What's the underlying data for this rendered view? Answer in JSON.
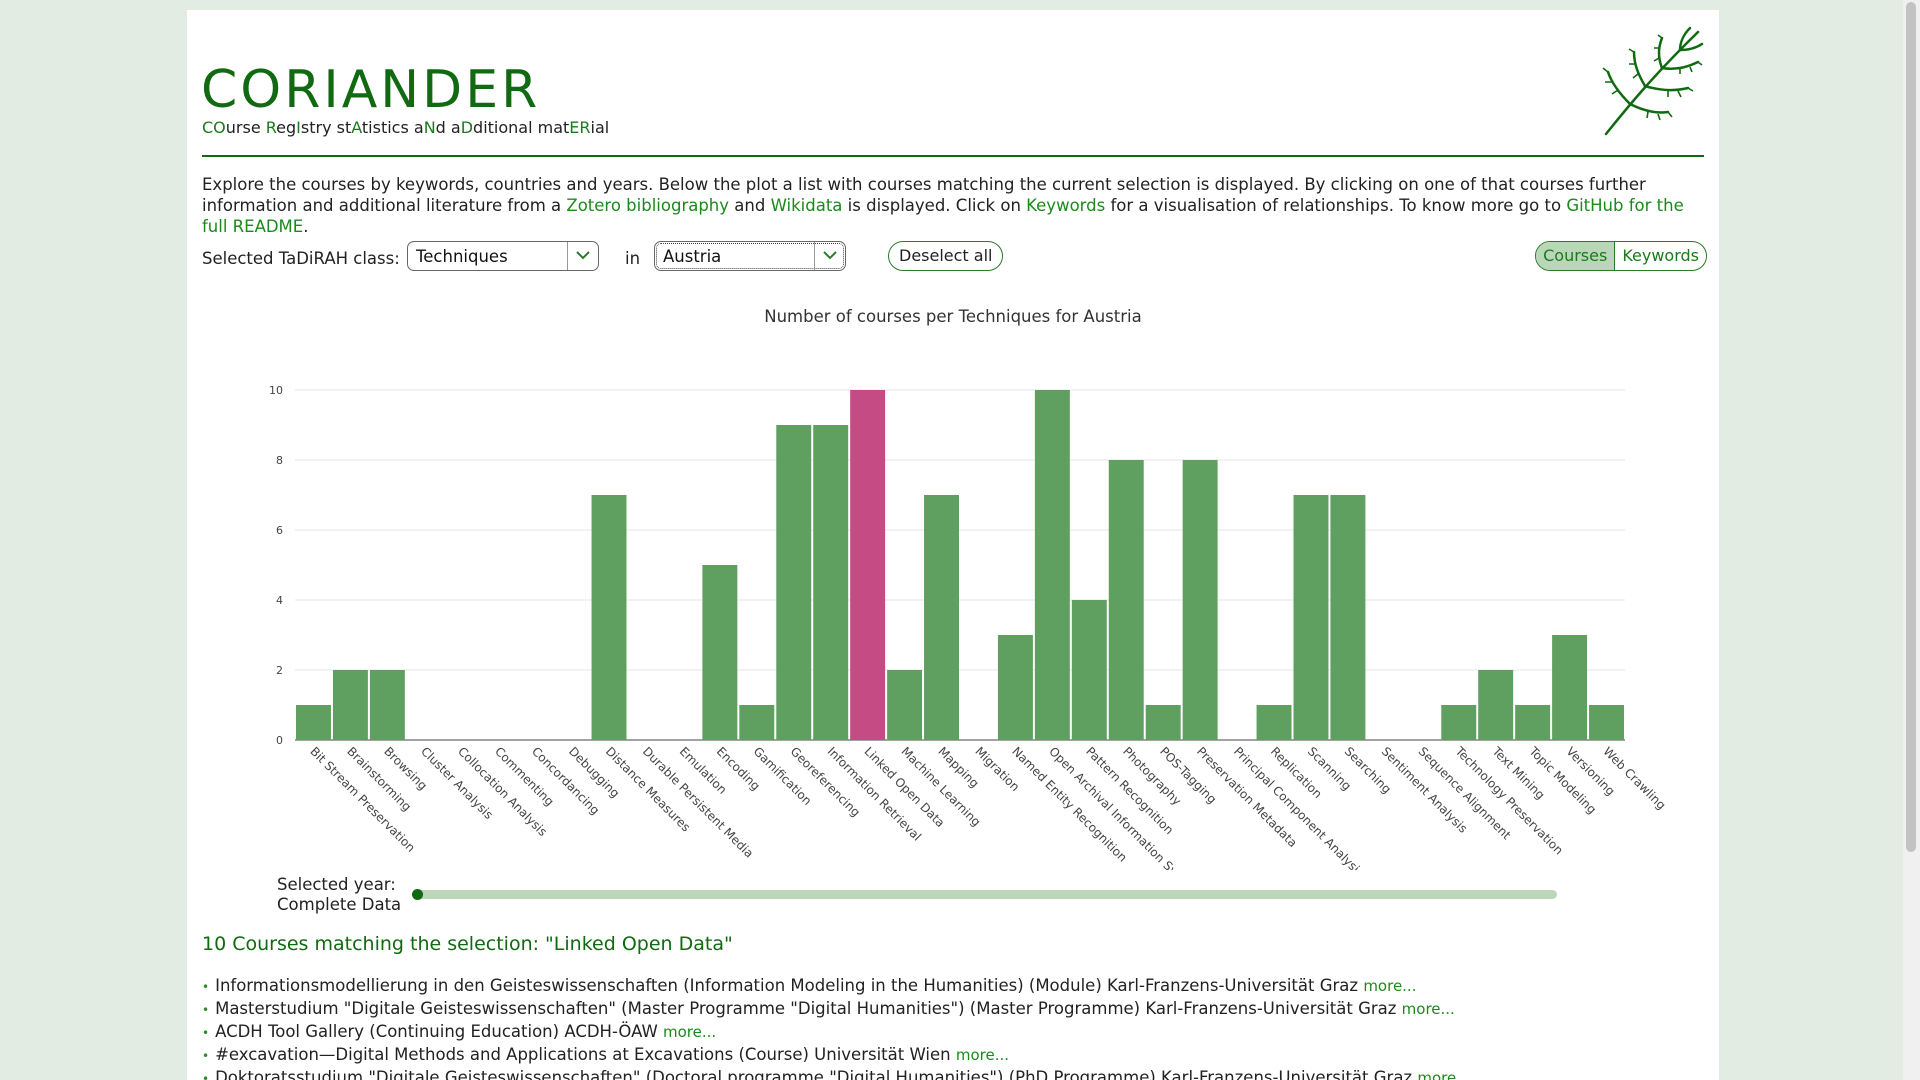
{
  "header": {
    "title": "CORIANDER",
    "subtitle_parts": [
      {
        "t": "CO",
        "hl": true
      },
      {
        "t": "urse ",
        "hl": false
      },
      {
        "t": "R",
        "hl": true
      },
      {
        "t": "eg",
        "hl": false
      },
      {
        "t": "I",
        "hl": true
      },
      {
        "t": "stry st",
        "hl": false
      },
      {
        "t": "A",
        "hl": true
      },
      {
        "t": "tistics a",
        "hl": false
      },
      {
        "t": "N",
        "hl": true
      },
      {
        "t": "d a",
        "hl": false
      },
      {
        "t": "D",
        "hl": true
      },
      {
        "t": "ditional mat",
        "hl": false
      },
      {
        "t": "ER",
        "hl": true
      },
      {
        "t": "ial",
        "hl": false
      }
    ],
    "logo_icon": "coriander-leaf-icon"
  },
  "intro": {
    "p1": "Explore the courses by keywords, countries and years. Below the plot a list with courses matching the current selection is displayed. By clicking on one of that courses further information and additional literature from a ",
    "link_zotero": "Zotero bibliography",
    "p2": " and ",
    "link_wikidata": "Wikidata",
    "p3": " is displayed. Click on ",
    "link_keywords": "Keywords",
    "p4": " for a visualisation of relationships. To know more go to ",
    "link_github": "GitHub for the full README",
    "p5": "."
  },
  "controls": {
    "class_label": "Selected TaDiRAH class:",
    "class_value": "Techniques",
    "in_label": "in",
    "country_value": "Austria",
    "deselect_label": "Deselect all",
    "view_courses": "Courses",
    "view_keywords": "Keywords"
  },
  "chart_data": {
    "type": "bar",
    "title": "Number of courses per Techniques for Austria",
    "xlabel": "",
    "ylabel": "",
    "ylim": [
      0,
      10
    ],
    "yticks": [
      0,
      2,
      4,
      6,
      8,
      10
    ],
    "grid": true,
    "highlight": "Linked Open Data",
    "colors": {
      "bar": "#5f9f5f",
      "highlight": "#c44b84",
      "grid": "#e6e6e6"
    },
    "categories": [
      "Bit Stream Preservation",
      "Brainstorming",
      "Browsing",
      "Cluster Analysis",
      "Collocation Analysis",
      "Commenting",
      "Concordancing",
      "Debugging",
      "Distance Measures",
      "Durable Persistent Media",
      "Emulation",
      "Encoding",
      "Gamification",
      "Georeferencing",
      "Information Retrieval",
      "Linked Open Data",
      "Machine Learning",
      "Mapping",
      "Migration",
      "Named Entity Recognition",
      "Open Archival Information Systems",
      "Pattern Recognition",
      "Photography",
      "POS-Tagging",
      "Preservation Metadata",
      "Principal Component Analysis",
      "Replication",
      "Scanning",
      "Searching",
      "Sentiment Analysis",
      "Sequence Alignment",
      "Technology Preservation",
      "Text Mining",
      "Topic Modeling",
      "Versioning",
      "Web Crawling"
    ],
    "values": [
      1,
      2,
      2,
      0,
      0,
      0,
      0,
      0,
      7,
      0,
      0,
      5,
      1,
      9,
      9,
      10,
      2,
      7,
      0,
      3,
      10,
      4,
      8,
      1,
      8,
      0,
      1,
      7,
      7,
      0,
      0,
      1,
      2,
      1,
      3,
      1
    ]
  },
  "slider": {
    "label_line1": "Selected year:",
    "label_line2": "Complete Data",
    "value": 0
  },
  "results": {
    "title": "10 Courses matching the selection: \"Linked Open Data\"",
    "more_label": "more...",
    "items": [
      "Informationsmodellierung in den Geisteswissenschaften (Information Modeling in the Humanities) (Module) Karl-Franzens-Universität Graz",
      "Masterstudium \"Digitale Geisteswissenschaften\" (Master Programme \"Digital Humanities\") (Master Programme) Karl-Franzens-Universität Graz",
      "ACDH Tool Gallery (Continuing Education) ACDH-ÖAW",
      "#excavation—Digital Methods and Applications at Excavations (Course) Universität Wien",
      "Doktoratsstudium \"Digitale Geisteswissenschaften\" (Doctoral programme \"Digital Humanities\") (PhD Programme) Karl-Franzens-Universität Graz"
    ]
  }
}
